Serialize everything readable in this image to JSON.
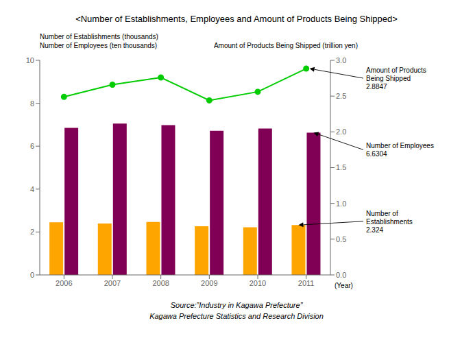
{
  "chart_data": {
    "type": "bar",
    "title": "<Number of Establishments, Employees and Amount of Products Being Shipped>",
    "categories": [
      "2006",
      "2007",
      "2008",
      "2009",
      "2010",
      "2011"
    ],
    "series": [
      {
        "type": "bar",
        "color": "#FFA500",
        "values": [
          2.45,
          2.4,
          2.47,
          2.27,
          2.22,
          2.324
        ],
        "annotation": "Number of\nEstablishments\n2.324"
      },
      {
        "type": "bar",
        "color": "#800055",
        "values": [
          6.85,
          7.05,
          6.98,
          6.72,
          6.82,
          6.6304
        ],
        "annotation": "Number of Employees\n6.6304"
      },
      {
        "type": "line",
        "axis": "y2",
        "color": "#00CC00",
        "marker": "circle",
        "line_style": "solid",
        "values": [
          2.49,
          2.66,
          2.76,
          2.44,
          2.56,
          2.8847
        ],
        "annotation": "Amount of Products\nBeing Shipped\n2.8847"
      }
    ],
    "ylabel": "Number of Establishments (thousands)\nNumber of Employees (ten thousands)",
    "y2label": "Amount of Products Being Shipped (trillion yen)",
    "xlabel": "(Year)",
    "source": "Source:”Industry in Kagawa Prefecture”\nKagawa Prefecture Statistics and Research Division",
    "ylim": [
      0,
      10
    ],
    "yticks": [
      0,
      2,
      4,
      6,
      8,
      10
    ],
    "y2lim": [
      0,
      3.0
    ],
    "y2ticks": [
      {
        "value": 0,
        "label": "0.0"
      },
      0.5,
      {
        "value": 1.0,
        "label": "1.0"
      },
      1.5,
      {
        "value": 2.0,
        "label": "2.0"
      },
      2.5,
      {
        "value": 3.0,
        "label": "3.0"
      }
    ],
    "grid": false
  }
}
